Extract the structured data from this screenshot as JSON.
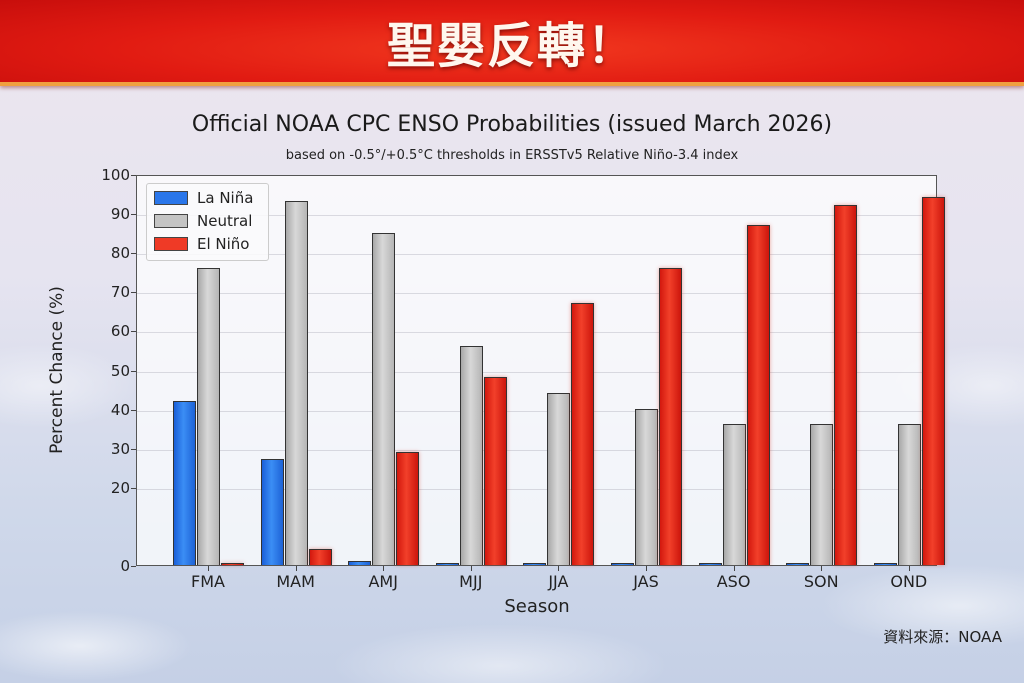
{
  "banner": {
    "title": "聖嬰反轉！",
    "color": "#e11b12"
  },
  "header": {
    "title": "Official NOAA CPC ENSO Probabilities (issued March 2026)",
    "subtitle": "based on -0.5°/+0.5°C thresholds in ERSSTv5 Relative Niño-3.4 index"
  },
  "legend": [
    {
      "label": "La Niña",
      "color": "#2a76ea"
    },
    {
      "label": "Neutral",
      "color": "#c4c4c4"
    },
    {
      "label": "El Niño",
      "color": "#ef3a26"
    }
  ],
  "axes": {
    "ylabel": "Percent Chance (%)",
    "xlabel": "Season",
    "yticks": [
      "0",
      "20",
      "30",
      "40",
      "50",
      "60",
      "70",
      "80",
      "90",
      "100"
    ]
  },
  "source": "資料來源：NOAA",
  "chart_data": {
    "type": "bar",
    "title": "Official NOAA CPC ENSO Probabilities (issued March 2026)",
    "subtitle": "based on -0.5°/+0.5°C thresholds in ERSSTv5 Relative Niño-3.4 index",
    "xlabel": "Season",
    "ylabel": "Percent Chance (%)",
    "ylim": [
      0,
      100
    ],
    "grid": true,
    "legend_position": "upper left",
    "categories": [
      "FMA",
      "MAM",
      "AMJ",
      "MJJ",
      "JJA",
      "JAS",
      "ASO",
      "SON",
      "OND"
    ],
    "series": [
      {
        "name": "La Niña",
        "color": "#2a76ea",
        "values": [
          42,
          27,
          1,
          0.5,
          0.5,
          0.5,
          0.5,
          0.5,
          0.5
        ]
      },
      {
        "name": "Neutral",
        "color": "#c4c4c4",
        "values": [
          76,
          93,
          85,
          56,
          44,
          40,
          36,
          36,
          36
        ]
      },
      {
        "name": "El Niño",
        "color": "#ef3a26",
        "values": [
          0.5,
          4,
          29,
          48,
          67,
          76,
          87,
          92,
          94
        ]
      }
    ]
  }
}
